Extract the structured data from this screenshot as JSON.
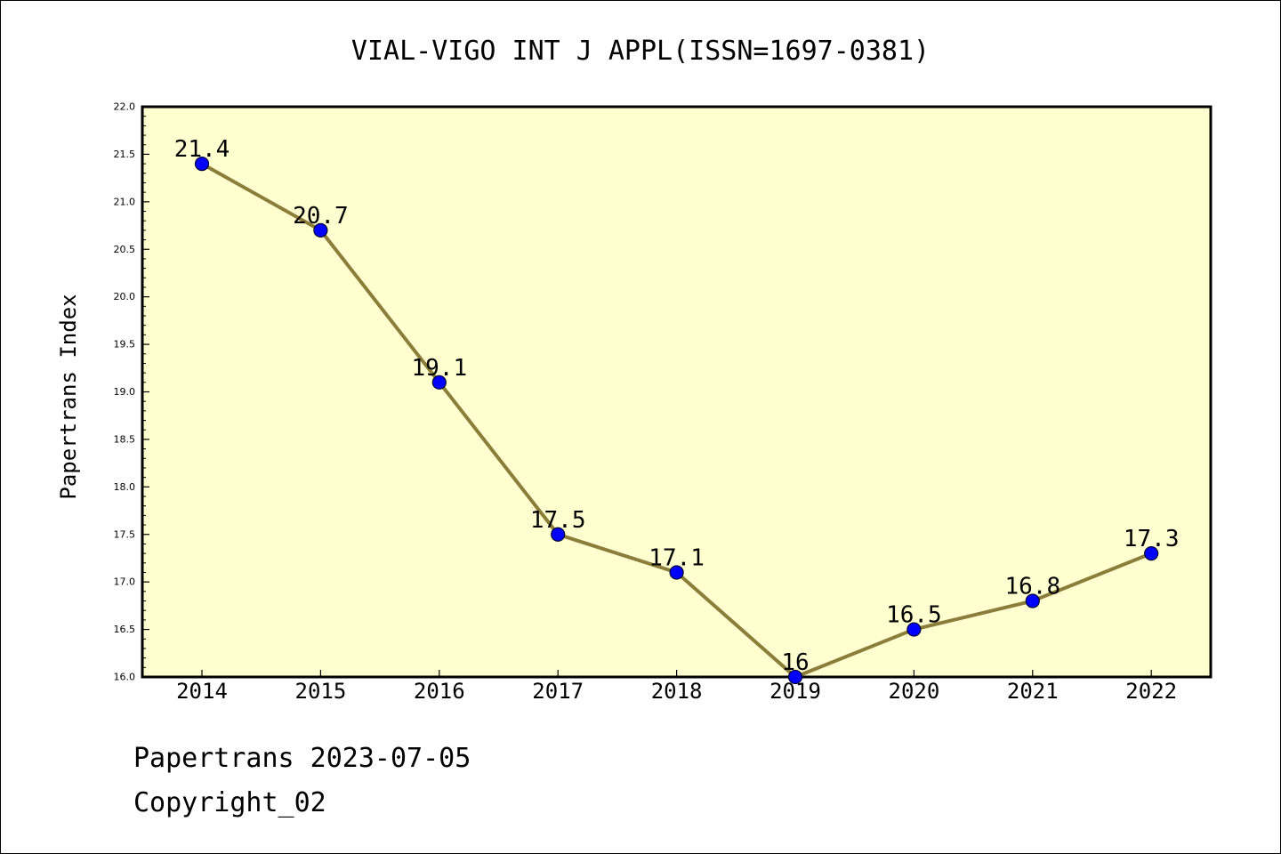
{
  "chart_data": {
    "type": "line",
    "title": "VIAL-VIGO INT J APPL(ISSN=1697-0381)",
    "xlabel": "",
    "ylabel": "Papertrans Index",
    "categories": [
      "2014",
      "2015",
      "2016",
      "2017",
      "2018",
      "2019",
      "2020",
      "2021",
      "2022"
    ],
    "series": [
      {
        "values": [
          21.4,
          20.7,
          19.1,
          17.5,
          17.1,
          16.0,
          16.5,
          16.8,
          17.3
        ],
        "labels": [
          "21.4",
          "20.7",
          "19.1",
          "17.5",
          "17.1",
          "16",
          "16.5",
          "16.8",
          "17.3"
        ],
        "line_color": "#8b7d3a",
        "marker_color": "#0000ff"
      }
    ],
    "ylim": [
      16.0,
      22.0
    ],
    "yticks": [
      "16.0",
      "16.5",
      "17.0",
      "17.5",
      "18.0",
      "18.5",
      "19.0",
      "19.5",
      "20.0",
      "20.5",
      "21.0",
      "21.5",
      "22.0"
    ],
    "plot_background": "#ffffd0",
    "grid": false,
    "legend": "none"
  },
  "footer": {
    "line1": "Papertrans 2023-07-05",
    "line2": "Copyright_02"
  }
}
